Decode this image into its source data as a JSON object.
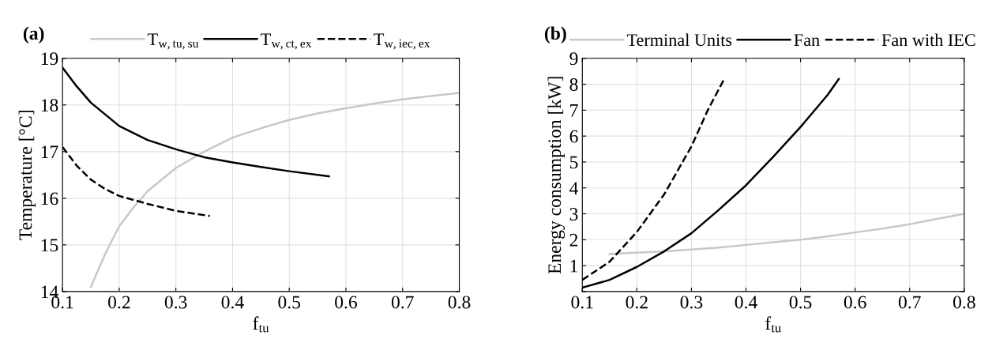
{
  "chart_data": [
    {
      "type": "line",
      "title": "(a)",
      "xlabel": "f$_{tu}$",
      "ylabel": "Temperature [°C]",
      "xlim": [
        0.1,
        0.8
      ],
      "xticks": [
        0.1,
        0.2,
        0.3,
        0.4,
        0.5,
        0.6,
        0.7,
        0.8
      ],
      "ylim": [
        14,
        19
      ],
      "yticks": [
        14,
        15,
        16,
        17,
        18,
        19
      ],
      "grid": true,
      "legend": "top",
      "series": [
        {
          "name": "T$_{w,tu,su}$",
          "color": "#c8c8c8",
          "line_style": "solid",
          "x": [
            0.15,
            0.175,
            0.2,
            0.225,
            0.25,
            0.3,
            0.35,
            0.4,
            0.45,
            0.5,
            0.55,
            0.6,
            0.65,
            0.7,
            0.75,
            0.8
          ],
          "values": [
            14.1,
            14.8,
            15.4,
            15.8,
            16.15,
            16.65,
            17.0,
            17.3,
            17.5,
            17.68,
            17.82,
            17.93,
            18.03,
            18.12,
            18.19,
            18.26
          ]
        },
        {
          "name": "T$_{w,ct,ex}$",
          "color": "#000000",
          "line_style": "solid",
          "x": [
            0.1,
            0.125,
            0.15,
            0.175,
            0.2,
            0.25,
            0.3,
            0.35,
            0.4,
            0.45,
            0.5,
            0.57
          ],
          "values": [
            18.8,
            18.4,
            18.05,
            17.8,
            17.55,
            17.25,
            17.05,
            16.88,
            16.77,
            16.67,
            16.58,
            16.47
          ]
        },
        {
          "name": "T$_{w,iec,ex}$",
          "color": "#000000",
          "line_style": "dashed",
          "x": [
            0.1,
            0.125,
            0.15,
            0.175,
            0.2,
            0.25,
            0.3,
            0.36
          ],
          "values": [
            17.1,
            16.7,
            16.4,
            16.2,
            16.05,
            15.88,
            15.73,
            15.62
          ]
        }
      ]
    },
    {
      "type": "line",
      "title": "(b)",
      "xlabel": "f$_{tu}$",
      "ylabel": "Energy consumption [kW]",
      "xlim": [
        0.1,
        0.8
      ],
      "xticks": [
        0.1,
        0.2,
        0.3,
        0.4,
        0.5,
        0.6,
        0.7,
        0.8
      ],
      "ylim": [
        0,
        9
      ],
      "yticks": [
        {
          "value": 0,
          "label": null
        },
        1,
        2,
        3,
        4,
        5,
        6,
        7,
        8,
        9
      ],
      "grid": true,
      "legend": "top",
      "series": [
        {
          "name": "Terminal Units",
          "color": "#c8c8c8",
          "line_style": "solid",
          "x": [
            0.15,
            0.2,
            0.25,
            0.3,
            0.35,
            0.4,
            0.45,
            0.5,
            0.55,
            0.6,
            0.65,
            0.7,
            0.75,
            0.8
          ],
          "values": [
            1.45,
            1.5,
            1.55,
            1.62,
            1.7,
            1.8,
            1.9,
            2.0,
            2.13,
            2.28,
            2.43,
            2.6,
            2.8,
            3.0
          ]
        },
        {
          "name": "Fan",
          "color": "#000000",
          "line_style": "solid",
          "x": [
            0.1,
            0.15,
            0.2,
            0.25,
            0.3,
            0.35,
            0.4,
            0.45,
            0.5,
            0.55,
            0.57
          ],
          "values": [
            0.15,
            0.45,
            0.95,
            1.55,
            2.25,
            3.15,
            4.1,
            5.2,
            6.35,
            7.6,
            8.2
          ]
        },
        {
          "name": "Fan with IEC",
          "color": "#000000",
          "line_style": "dashed",
          "x": [
            0.1,
            0.15,
            0.2,
            0.25,
            0.3,
            0.33,
            0.36
          ],
          "values": [
            0.45,
            1.15,
            2.3,
            3.75,
            5.6,
            7.0,
            8.2
          ]
        }
      ]
    }
  ]
}
